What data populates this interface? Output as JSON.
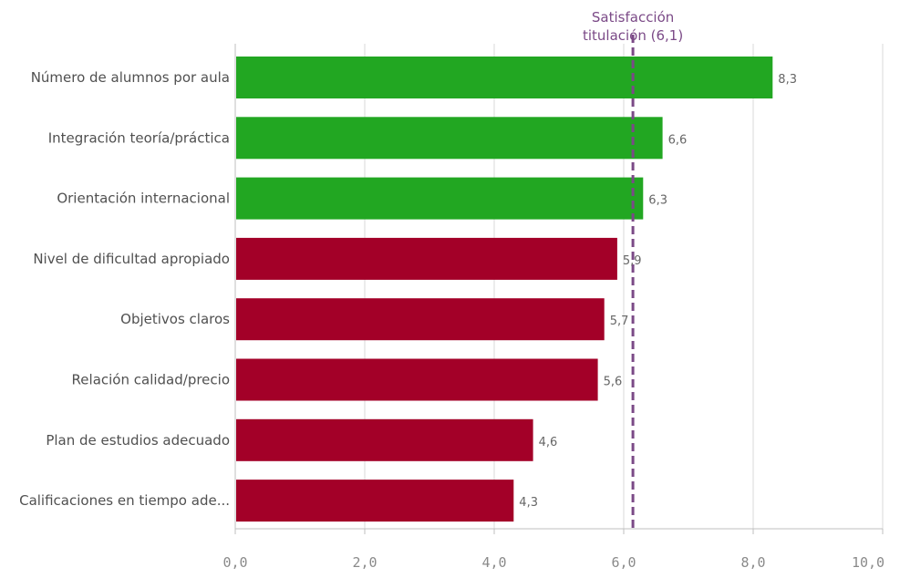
{
  "chart_data": {
    "type": "bar",
    "orientation": "horizontal",
    "categories": [
      "Número de alumnos por aula",
      "Integración teoría/práctica",
      "Orientación internacional",
      "Nivel de dificultad apropiado",
      "Objetivos claros",
      "Relación calidad/precio",
      "Plan de estudios adecuado",
      "Calificaciones en tiempo ade..."
    ],
    "values": [
      8.3,
      6.6,
      6.3,
      5.9,
      5.7,
      5.6,
      4.6,
      4.3
    ],
    "value_labels": [
      "8,3",
      "6,6",
      "6,3",
      "5,9",
      "5,7",
      "5,6",
      "4,6",
      "4,3"
    ],
    "xlim": [
      0,
      10
    ],
    "x_ticks": [
      0,
      2,
      4,
      6,
      8,
      10
    ],
    "x_tick_labels": [
      "0,0",
      "2,0",
      "4,0",
      "6,0",
      "8,0",
      "10,0"
    ],
    "grid": true,
    "reference_line": {
      "value": 6.1,
      "label_lines": [
        "Satisfacción",
        "titulación (6,1)"
      ],
      "color": "#7b4a87",
      "style": "dashed"
    },
    "colors": {
      "above_reference": "#22a722",
      "below_reference": "#a30028",
      "grid": "#d9d9d9",
      "axis": "#bfbfbf"
    },
    "title": "",
    "xlabel": "",
    "ylabel": ""
  }
}
